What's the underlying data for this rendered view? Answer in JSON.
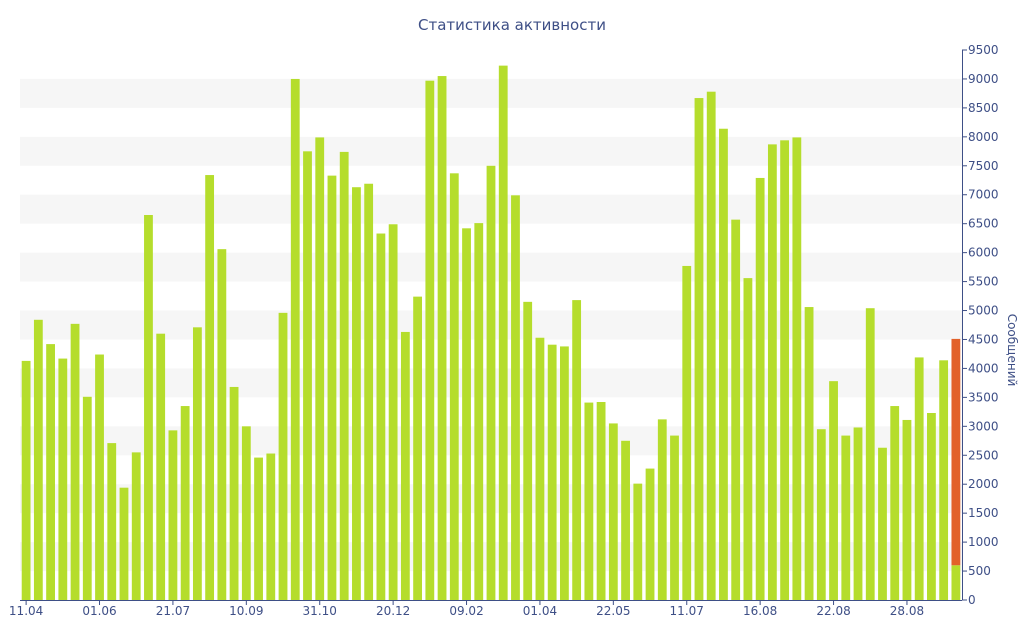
{
  "chart_data": {
    "type": "bar",
    "title": "Статистика активности",
    "ylabel": "Сообщений",
    "xlabel": "",
    "ylim": [
      0,
      9500
    ],
    "y_ticks": [
      0,
      500,
      1000,
      1500,
      2000,
      2500,
      3000,
      3500,
      4000,
      4500,
      5000,
      5500,
      6000,
      6500,
      7000,
      7500,
      8000,
      8500,
      9000,
      9500
    ],
    "x_tick_labels": [
      {
        "index": 0,
        "label": "11.04"
      },
      {
        "index": 6,
        "label": "01.06"
      },
      {
        "index": 12,
        "label": "21.07"
      },
      {
        "index": 18,
        "label": "10.09"
      },
      {
        "index": 24,
        "label": "31.10"
      },
      {
        "index": 30,
        "label": "20.12"
      },
      {
        "index": 36,
        "label": "09.02"
      },
      {
        "index": 42,
        "label": "01.04"
      },
      {
        "index": 48,
        "label": "22.05"
      },
      {
        "index": 54,
        "label": "11.07"
      },
      {
        "index": 60,
        "label": "16.08"
      },
      {
        "index": 66,
        "label": "22.08"
      },
      {
        "index": 72,
        "label": "28.08"
      }
    ],
    "grid": "alternating horizontal bands",
    "colors": {
      "bar": "#b5dd2c",
      "highlight": "#e2612a",
      "band": "#f6f6f6",
      "axis": "#3e4f86"
    },
    "values": [
      4130,
      4840,
      4420,
      4170,
      4770,
      3510,
      4240,
      2710,
      1940,
      2550,
      6650,
      4600,
      2930,
      3350,
      4710,
      7340,
      6060,
      3680,
      3000,
      2460,
      2530,
      4960,
      9000,
      7750,
      7990,
      7330,
      7740,
      7130,
      7190,
      6330,
      6490,
      4630,
      5240,
      8970,
      9050,
      7370,
      6420,
      6510,
      7500,
      9230,
      6990,
      5150,
      4530,
      4410,
      4380,
      5180,
      3410,
      3420,
      3050,
      2750,
      2010,
      2270,
      3120,
      2840,
      5770,
      8670,
      8780,
      8140,
      6570,
      5560,
      7290,
      7870,
      7940,
      7990,
      5060,
      2950,
      3780,
      2840,
      2980,
      5040,
      2630,
      3350,
      3110,
      4190,
      3230,
      4140,
      4510
    ],
    "highlight": {
      "index": 76,
      "base_value": 600,
      "top_value": 4510
    }
  }
}
